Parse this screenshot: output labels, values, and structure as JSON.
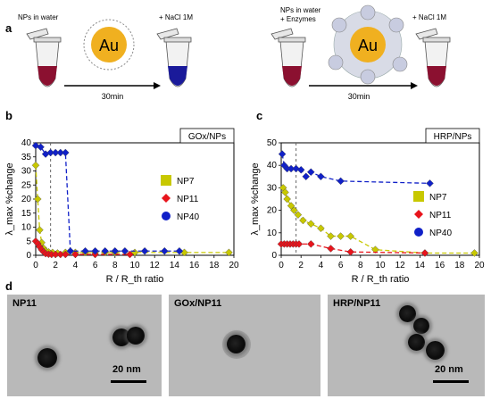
{
  "panel_a": {
    "letter": "a",
    "left_label": "NPs in water",
    "left_salt": "+ NaCl 1M",
    "left_time": "30min",
    "right_label_1": "NPs in water",
    "right_label_2": "+ Enzymes",
    "right_salt": "+ NaCl 1M",
    "right_time": "30min",
    "au": "Au"
  },
  "panel_b": {
    "letter": "b",
    "tag": "GOx/NPs"
  },
  "panel_c": {
    "letter": "c",
    "tag": "HRP/NPs"
  },
  "panel_d": {
    "letter": "d",
    "images": [
      {
        "label": "NP11",
        "scale": "20 nm"
      },
      {
        "label": "GOx/NP11",
        "scale": ""
      },
      {
        "label": "HRP/NP11",
        "scale": "20 nm"
      }
    ]
  },
  "colors": {
    "NP7": "#c8c800",
    "NP11": "#e8141c",
    "NP40": "#1020c8",
    "tube_red": "#8b1030",
    "tube_blue": "#1a1a9a"
  },
  "chart_data": [
    {
      "type": "scatter",
      "title": "GOx/NPs",
      "xlabel": "R / R_th ratio",
      "ylabel": "λ_max %change",
      "xlim": [
        0,
        20
      ],
      "ylim": [
        0,
        40
      ],
      "xticks": [
        0,
        2,
        4,
        6,
        8,
        10,
        12,
        14,
        16,
        18,
        20
      ],
      "yticks": [
        0,
        5,
        10,
        15,
        20,
        25,
        30,
        35,
        40
      ],
      "threshold_x": 1.5,
      "series": [
        {
          "name": "NP7",
          "color": "#c8c800",
          "x": [
            0,
            0.2,
            0.4,
            0.6,
            0.8,
            1.0,
            1.3,
            1.7,
            2.2,
            3.0,
            4.0,
            5.0,
            6.0,
            7.0,
            8.0,
            10.0,
            15.0,
            19.5
          ],
          "y": [
            32,
            20,
            9,
            4.5,
            2.5,
            1.5,
            1.2,
            1.0,
            0.8,
            1.0,
            1.0,
            1.0,
            1.0,
            1.0,
            1.0,
            1.0,
            1.0,
            1.0
          ]
        },
        {
          "name": "NP11",
          "color": "#e8141c",
          "x": [
            0,
            0.2,
            0.4,
            0.6,
            0.8,
            1.0,
            1.3,
            1.6,
            2.0,
            2.5,
            3.0,
            4.0,
            6.0,
            9.5
          ],
          "y": [
            5,
            4.2,
            3.0,
            2.0,
            1.2,
            0.6,
            0.4,
            0.3,
            0.3,
            0.3,
            0.3,
            0.3,
            0.3,
            0.3
          ]
        },
        {
          "name": "NP40",
          "color": "#1020c8",
          "x": [
            0,
            0.5,
            1.0,
            1.5,
            2.0,
            2.5,
            3.0,
            3.5,
            5.0,
            6.0,
            7.0,
            8.0,
            9.0,
            11.0,
            13.0,
            14.5
          ],
          "y": [
            39,
            38.5,
            36,
            36.5,
            36.5,
            36.5,
            36.5,
            1.5,
            1.5,
            1.5,
            1.5,
            1.5,
            1.5,
            1.5,
            1.5,
            1.5
          ]
        }
      ]
    },
    {
      "type": "scatter",
      "title": "HRP/NPs",
      "xlabel": "R / R_th ratio",
      "ylabel": "λ_max %change",
      "xlim": [
        0,
        20
      ],
      "ylim": [
        0,
        50
      ],
      "xticks": [
        0,
        2,
        4,
        6,
        8,
        10,
        12,
        14,
        16,
        18,
        20
      ],
      "yticks": [
        0,
        10,
        20,
        30,
        40,
        50
      ],
      "threshold_x": 1.5,
      "series": [
        {
          "name": "NP7",
          "color": "#c8c800",
          "x": [
            0.2,
            0.4,
            0.6,
            1.0,
            1.3,
            1.7,
            2.2,
            3.0,
            4.0,
            5.0,
            6.0,
            7.0,
            9.5,
            14.5,
            19.5
          ],
          "y": [
            30,
            28,
            25,
            22,
            20,
            18,
            15.5,
            14,
            12,
            8.5,
            8.5,
            8.5,
            2.5,
            1,
            1
          ]
        },
        {
          "name": "NP11",
          "color": "#e8141c",
          "x": [
            0,
            0.3,
            0.6,
            0.9,
            1.2,
            1.5,
            1.8,
            3.0,
            5.0,
            7.0,
            14.5
          ],
          "y": [
            5,
            5,
            5,
            5,
            5,
            5,
            5,
            5,
            3,
            1.5,
            1
          ]
        },
        {
          "name": "NP40",
          "color": "#1020c8",
          "x": [
            0.1,
            0.3,
            0.6,
            1.0,
            1.5,
            2.0,
            2.5,
            3.0,
            4.0,
            6.0,
            15.0
          ],
          "y": [
            45,
            40,
            38.5,
            38.5,
            38.5,
            38,
            35,
            37,
            35,
            33,
            32
          ]
        }
      ]
    }
  ]
}
